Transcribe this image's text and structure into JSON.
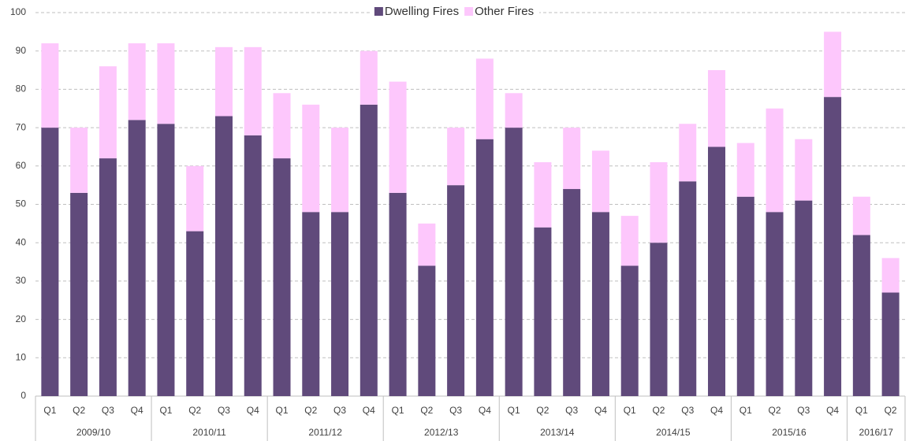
{
  "chart_data": {
    "type": "stacked_bar",
    "groups": [
      {
        "name": "2009/10",
        "categories": [
          "Q1",
          "Q2",
          "Q3",
          "Q4"
        ]
      },
      {
        "name": "2010/11",
        "categories": [
          "Q1",
          "Q2",
          "Q3",
          "Q4"
        ]
      },
      {
        "name": "2011/12",
        "categories": [
          "Q1",
          "Q2",
          "Q3",
          "Q4"
        ]
      },
      {
        "name": "2012/13",
        "categories": [
          "Q1",
          "Q2",
          "Q3",
          "Q4"
        ]
      },
      {
        "name": "2013/14",
        "categories": [
          "Q1",
          "Q2",
          "Q3",
          "Q4"
        ]
      },
      {
        "name": "2014/15",
        "categories": [
          "Q1",
          "Q2",
          "Q3",
          "Q4"
        ]
      },
      {
        "name": "2015/16",
        "categories": [
          "Q1",
          "Q2",
          "Q3",
          "Q4"
        ]
      },
      {
        "name": "2016/17",
        "categories": [
          "Q1",
          "Q2"
        ]
      }
    ],
    "series": [
      {
        "name": "Dwelling Fires",
        "color": "#604a7b",
        "values": [
          70,
          53,
          62,
          72,
          71,
          43,
          73,
          68,
          62,
          48,
          48,
          76,
          53,
          34,
          55,
          67,
          70,
          44,
          54,
          48,
          34,
          40,
          56,
          65,
          52,
          48,
          51,
          78,
          42,
          27
        ]
      },
      {
        "name": "Other Fires",
        "color": "#fdc7fc",
        "values": [
          22,
          17,
          24,
          20,
          21,
          17,
          18,
          23,
          17,
          28,
          22,
          14,
          29,
          11,
          15,
          21,
          9,
          17,
          16,
          16,
          13,
          21,
          15,
          20,
          14,
          27,
          16,
          17,
          10,
          9
        ]
      }
    ],
    "ylim": [
      0,
      100
    ],
    "yticks": [
      0,
      10,
      20,
      30,
      40,
      50,
      60,
      70,
      80,
      90,
      100
    ],
    "grid": true,
    "legend": "top"
  }
}
